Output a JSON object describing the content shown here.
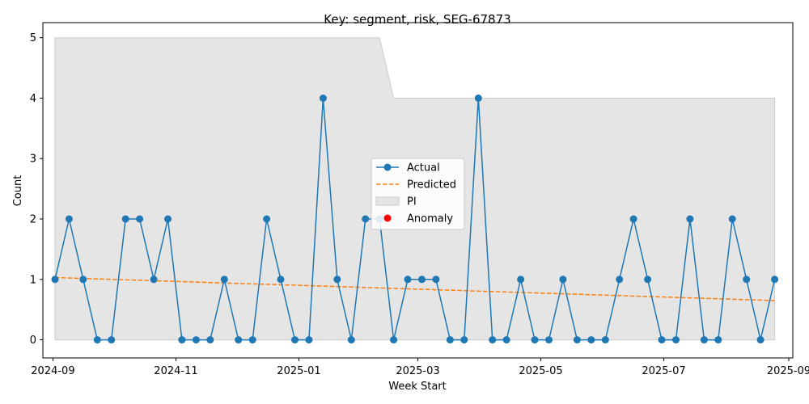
{
  "chart_data": {
    "type": "line",
    "title": "Key: segment, risk, SEG-67873",
    "xlabel": "Week Start",
    "ylabel": "Count",
    "ylim": [
      -0.3,
      5.25
    ],
    "xlim": [
      "2024-08-27",
      "2025-09-03"
    ],
    "x_ticks": [
      "2024-09",
      "2024-11",
      "2025-01",
      "2025-03",
      "2025-05",
      "2025-07",
      "2025-09"
    ],
    "y_ticks": [
      0,
      1,
      2,
      3,
      4,
      5
    ],
    "grid": false,
    "legend_position": "center",
    "colors": {
      "actual": "#1f77b4",
      "predicted": "#ff7f0e",
      "pi": "#e5e5e5",
      "pi_edge": "#cccccc",
      "anomaly": "#ff0000"
    },
    "legend": [
      "Actual",
      "Predicted",
      "PI",
      "Anomaly"
    ],
    "series": [
      {
        "name": "Actual",
        "x": [
          "2024-09-02",
          "2024-09-09",
          "2024-09-16",
          "2024-09-23",
          "2024-09-30",
          "2024-10-07",
          "2024-10-14",
          "2024-10-21",
          "2024-10-28",
          "2024-11-04",
          "2024-11-11",
          "2024-11-18",
          "2024-11-25",
          "2024-12-02",
          "2024-12-09",
          "2024-12-16",
          "2024-12-23",
          "2024-12-30",
          "2025-01-06",
          "2025-01-13",
          "2025-01-20",
          "2025-01-27",
          "2025-02-03",
          "2025-02-10",
          "2025-02-17",
          "2025-02-24",
          "2025-03-03",
          "2025-03-10",
          "2025-03-17",
          "2025-03-24",
          "2025-03-31",
          "2025-04-07",
          "2025-04-14",
          "2025-04-21",
          "2025-04-28",
          "2025-05-05",
          "2025-05-12",
          "2025-05-19",
          "2025-05-26",
          "2025-06-02",
          "2025-06-09",
          "2025-06-16",
          "2025-06-23",
          "2025-06-30",
          "2025-07-07",
          "2025-07-14",
          "2025-07-21",
          "2025-07-28",
          "2025-08-04",
          "2025-08-11",
          "2025-08-18",
          "2025-08-25"
        ],
        "values": [
          1,
          2,
          1,
          0,
          0,
          2,
          2,
          1,
          2,
          0,
          0,
          0,
          1,
          0,
          0,
          2,
          1,
          0,
          0,
          4,
          1,
          0,
          2,
          2,
          0,
          1,
          1,
          1,
          0,
          0,
          4,
          0,
          0,
          1,
          0,
          0,
          1,
          0,
          0,
          0,
          1,
          2,
          1,
          0,
          0,
          2,
          0,
          0,
          2,
          1,
          0,
          1
        ]
      },
      {
        "name": "Predicted",
        "x": [
          "2024-09-02",
          "2025-08-25"
        ],
        "values": [
          1.03,
          0.65
        ]
      },
      {
        "name": "PI",
        "x": [
          "2024-09-02",
          "2025-02-10",
          "2025-02-17",
          "2025-08-25"
        ],
        "upper": [
          5,
          5,
          4,
          4
        ],
        "lower": [
          0,
          0,
          0,
          0
        ]
      },
      {
        "name": "Anomaly",
        "x": [],
        "values": []
      }
    ]
  }
}
